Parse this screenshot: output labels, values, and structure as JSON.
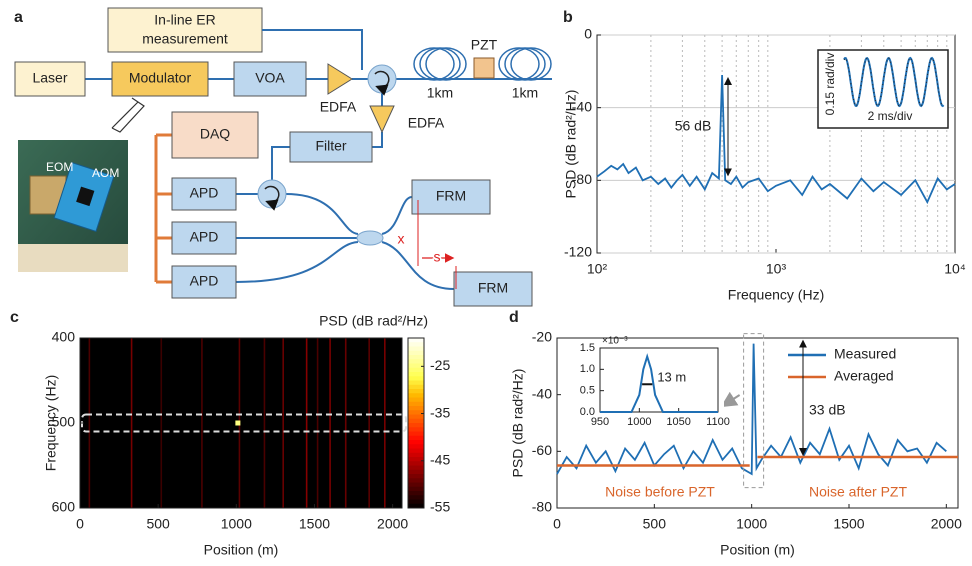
{
  "diagram": {
    "label": "a",
    "er_box": [
      "In-line ER",
      "measurement"
    ],
    "laser": "Laser",
    "modulator": "Modulator",
    "voa": "VOA",
    "edfa_1": "EDFA",
    "edfa_2": "EDFA",
    "pzt": "PZT",
    "fiber_1": "1km",
    "fiber_2": "1km",
    "daq": "DAQ",
    "filter": "Filter",
    "apds": [
      "APD",
      "APD",
      "APD"
    ],
    "frms": [
      "FRM",
      "FRM"
    ],
    "break_mark": "x",
    "spacing": "s",
    "photo_labels": [
      "EOM",
      "AOM"
    ]
  },
  "chart_data": [
    {
      "type": "line",
      "panel_label": "b",
      "x_label": "Frequency (Hz)",
      "y_label": "PSD (dB rad²/Hz)",
      "log_x": true,
      "grid": true,
      "xlim": [
        100,
        10000
      ],
      "ylim": [
        -120,
        0
      ],
      "xticks": [
        {
          "value": 100,
          "label": "10²"
        },
        {
          "value": 1000,
          "label": "10³"
        },
        {
          "value": 10000,
          "label": "10⁴"
        }
      ],
      "x_minor_ticks": [
        200,
        300,
        400,
        500,
        600,
        700,
        800,
        900,
        2000,
        3000,
        4000,
        5000,
        6000,
        7000,
        8000,
        9000
      ],
      "yticks": [
        0,
        -40,
        -80,
        -120
      ],
      "color": "#1f6fb4",
      "x": [
        100,
        110,
        120,
        130,
        140,
        150,
        165,
        180,
        200,
        220,
        240,
        260,
        280,
        300,
        330,
        360,
        400,
        440,
        480,
        500,
        520,
        560,
        600,
        650,
        700,
        800,
        900,
        1000,
        1200,
        1400,
        1600,
        1800,
        2000,
        2500,
        3000,
        3500,
        4000,
        5000,
        6000,
        7000,
        8000,
        9000,
        10000
      ],
      "values": [
        -78,
        -75,
        -72,
        -74,
        -71,
        -76,
        -73,
        -80,
        -78,
        -82,
        -79,
        -84,
        -80,
        -77,
        -83,
        -78,
        -85,
        -76,
        -79,
        -22,
        -80,
        -82,
        -78,
        -84,
        -81,
        -79,
        -86,
        -83,
        -80,
        -88,
        -78,
        -85,
        -82,
        -90,
        -79,
        -86,
        -81,
        -88,
        -80,
        -92,
        -79,
        -85,
        -82
      ],
      "annotation": "56 dB",
      "inset": {
        "x_label": "2 ms/div",
        "y_label": "0.15 rad/div"
      }
    },
    {
      "type": "heatmap",
      "panel_label": "c",
      "x_label": "Position (m)",
      "y_label": "Frequency (Hz)",
      "colorbar_label": "PSD (dB rad²/Hz)",
      "xlim": [
        0,
        2060
      ],
      "ylim": [
        600,
        400
      ],
      "xticks": [
        0,
        500,
        1000,
        1500,
        2000
      ],
      "yticks": [
        400,
        500,
        600
      ],
      "clim": [
        -55,
        -19
      ],
      "cticks": [
        -25,
        -35,
        -45,
        -55
      ],
      "highlight_band": [
        490,
        510
      ],
      "streaks": {
        "x": [
          60,
          330,
          520,
          780,
          1020,
          1180,
          1300,
          1450,
          1520,
          1600,
          1700,
          1850,
          1950
        ],
        "values": [
          -50,
          -47,
          -51,
          -50,
          -49,
          -50,
          -48,
          -46,
          -50,
          -47,
          -48,
          -49,
          -47
        ]
      },
      "spots": {
        "x": [
          1010
        ],
        "y": [
          500
        ],
        "values": [
          -25
        ]
      }
    },
    {
      "type": "line",
      "panel_label": "d",
      "x_label": "Position (m)",
      "y_label": "PSD (dB rad²/Hz)",
      "xlim": [
        0,
        2060
      ],
      "ylim": [
        -80,
        -20
      ],
      "xticks": [
        0,
        500,
        1000,
        1500,
        2000
      ],
      "yticks": [
        -20,
        -40,
        -60,
        -80
      ],
      "legend": "upper right",
      "series": [
        {
          "name": "Measured",
          "color": "#1f6fb4",
          "x": [
            0,
            50,
            100,
            150,
            200,
            250,
            300,
            350,
            400,
            450,
            500,
            550,
            600,
            650,
            700,
            750,
            800,
            850,
            900,
            950,
            1000,
            1010,
            1025,
            1050,
            1100,
            1150,
            1200,
            1250,
            1300,
            1350,
            1400,
            1450,
            1500,
            1550,
            1600,
            1650,
            1700,
            1750,
            1800,
            1850,
            1900,
            1950,
            2000
          ],
          "values": [
            -68,
            -62,
            -66,
            -58,
            -64,
            -60,
            -67,
            -59,
            -63,
            -57,
            -65,
            -61,
            -58,
            -66,
            -60,
            -64,
            -56,
            -63,
            -59,
            -66,
            -68,
            -22,
            -66,
            -63,
            -58,
            -62,
            -55,
            -64,
            -57,
            -61,
            -52,
            -63,
            -58,
            -66,
            -54,
            -61,
            -65,
            -56,
            -60,
            -59,
            -64,
            -57,
            -60
          ]
        },
        {
          "name": "Averaged",
          "color": "#d9652b",
          "x": [
            0,
            990,
            1000,
            1030,
            2060
          ],
          "values": [
            -65,
            -65,
            null,
            -62,
            -62
          ]
        }
      ],
      "annotations": {
        "peak": "33 dB",
        "before": "Noise before PZT",
        "after": "Noise after PZT"
      },
      "inset": {
        "xlim": [
          950,
          1100
        ],
        "ylim": [
          0,
          1.5
        ],
        "xticks": [
          950,
          1000,
          1050,
          1100
        ],
        "yticks": [
          {
            "value": 0,
            "label": "0.0"
          },
          0.5,
          {
            "value": 1,
            "label": "1.0"
          },
          1.5
        ],
        "multiplier": "×10⁻³",
        "width_label": "13 m",
        "x": [
          950,
          990,
          1000,
          1005,
          1010,
          1015,
          1020,
          1030,
          1100
        ],
        "values": [
          0,
          0,
          0.4,
          1.0,
          1.3,
          1.0,
          0.4,
          0,
          0
        ]
      }
    }
  ]
}
